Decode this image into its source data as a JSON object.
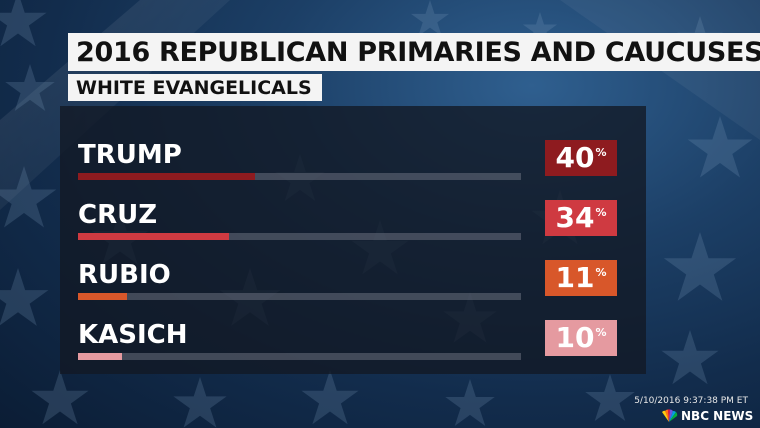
{
  "header": {
    "title": "2016 REPUBLICAN PRIMARIES AND CAUCUSES",
    "subtitle": "WHITE EVANGELICALS"
  },
  "chart_data": {
    "type": "bar",
    "title": "2016 REPUBLICAN PRIMARIES AND CAUCUSES",
    "subtitle": "WHITE EVANGELICALS",
    "categories": [
      "TRUMP",
      "CRUZ",
      "RUBIO",
      "KASICH"
    ],
    "values": [
      40,
      34,
      11,
      10
    ],
    "unit": "%",
    "xlim": [
      0,
      100
    ],
    "orientation": "horizontal",
    "colors": [
      "#8e1b1f",
      "#cf3a41",
      "#d8572a",
      "#e59aa0"
    ],
    "grid": false,
    "legend": "none"
  },
  "footer": {
    "timestamp": "5/10/2016 9:37:38 PM ET",
    "logo_text": "NBC NEWS",
    "logo_icon": "nbc-peacock-icon"
  }
}
